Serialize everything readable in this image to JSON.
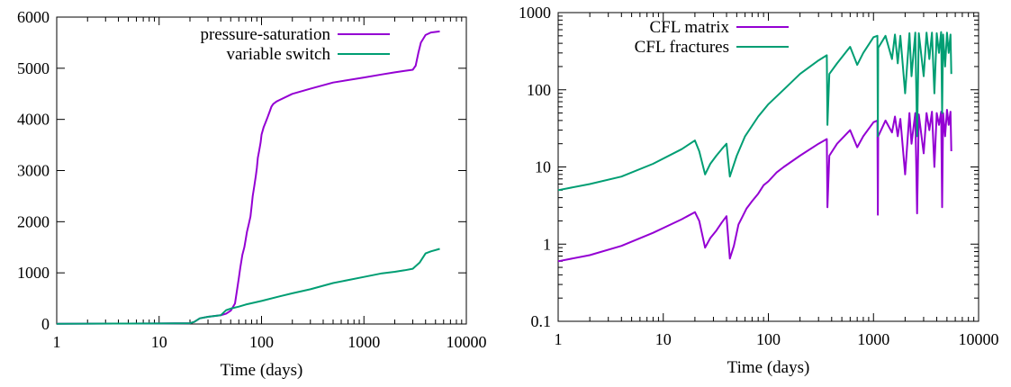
{
  "chart_data": [
    {
      "type": "line",
      "x_scale": "log",
      "y_scale": "linear",
      "xlim": [
        1,
        10000
      ],
      "ylim": [
        0,
        6000
      ],
      "xlabel": "Time (days)",
      "ylabel": "",
      "title": "",
      "grid": false,
      "legend_position": "top-right",
      "x_ticks": [
        1,
        10,
        100,
        1000,
        10000
      ],
      "x_tick_labels": [
        "1",
        "10",
        "100",
        "1000",
        "10000"
      ],
      "y_ticks": [
        0,
        1000,
        2000,
        3000,
        4000,
        5000,
        6000
      ],
      "y_tick_labels": [
        "0",
        "1000",
        "2000",
        "3000",
        "4000",
        "5000",
        "6000"
      ],
      "series": [
        {
          "name": "pressure-saturation",
          "color": "#9400d3",
          "x": [
            1,
            5,
            10,
            20,
            22,
            25,
            30,
            40,
            45,
            50,
            55,
            58,
            60,
            62,
            65,
            68,
            70,
            72,
            75,
            78,
            80,
            82,
            85,
            88,
            90,
            92,
            95,
            98,
            100,
            105,
            110,
            115,
            120,
            125,
            130,
            140,
            150,
            200,
            300,
            500,
            1000,
            1500,
            2000,
            2500,
            3000,
            3200,
            3400,
            3600,
            4000,
            4500,
            5500
          ],
          "y": [
            5,
            8,
            10,
            15,
            40,
            110,
            140,
            170,
            200,
            260,
            400,
            700,
            900,
            1100,
            1350,
            1500,
            1650,
            1800,
            1950,
            2100,
            2300,
            2500,
            2700,
            2900,
            3050,
            3250,
            3400,
            3550,
            3700,
            3850,
            3950,
            4050,
            4150,
            4250,
            4300,
            4350,
            4380,
            4500,
            4600,
            4720,
            4820,
            4880,
            4920,
            4950,
            4970,
            5050,
            5300,
            5500,
            5650,
            5700,
            5720
          ]
        },
        {
          "name": "variable switch",
          "color": "#009e73",
          "x": [
            1,
            5,
            10,
            20,
            22,
            25,
            30,
            40,
            45,
            50,
            60,
            70,
            100,
            150,
            200,
            300,
            500,
            1000,
            1500,
            2000,
            2500,
            3000,
            3500,
            4000,
            4500,
            5500
          ],
          "y": [
            5,
            8,
            10,
            15,
            40,
            110,
            140,
            170,
            270,
            300,
            340,
            380,
            450,
            540,
            600,
            680,
            800,
            920,
            990,
            1020,
            1050,
            1080,
            1200,
            1380,
            1420,
            1470
          ]
        }
      ]
    },
    {
      "type": "line",
      "x_scale": "log",
      "y_scale": "log",
      "xlim": [
        1,
        10000
      ],
      "ylim": [
        0.1,
        1000
      ],
      "xlabel": "Time (days)",
      "ylabel": "",
      "title": "",
      "grid": false,
      "legend_position": "top-left",
      "x_ticks": [
        1,
        10,
        100,
        1000,
        10000
      ],
      "x_tick_labels": [
        "1",
        "10",
        "100",
        "1000",
        "10000"
      ],
      "y_ticks": [
        0.1,
        1,
        10,
        100,
        1000
      ],
      "y_tick_labels": [
        "0.1",
        "1",
        "10",
        "100",
        "1000"
      ],
      "series": [
        {
          "name": "CFL matrix",
          "color": "#9400d3",
          "x": [
            1,
            2,
            4,
            8,
            15,
            20,
            22,
            25,
            28,
            32,
            36,
            40,
            43,
            47,
            52,
            56,
            62,
            70,
            80,
            90,
            100,
            120,
            140,
            200,
            300,
            360,
            365,
            380,
            450,
            600,
            700,
            800,
            1000,
            1090,
            1100,
            1110,
            1300,
            1500,
            1600,
            1700,
            1800,
            2000,
            2200,
            2300,
            2500,
            2600,
            2700,
            3000,
            3200,
            3400,
            3600,
            3800,
            4000,
            4200,
            4400,
            4500,
            4600,
            4800,
            5000,
            5200,
            5400,
            5500
          ],
          "y": [
            0.6,
            0.72,
            0.95,
            1.4,
            2.1,
            2.6,
            2.0,
            0.9,
            1.2,
            1.5,
            1.9,
            2.3,
            0.65,
            0.95,
            1.8,
            2.2,
            2.9,
            3.6,
            4.5,
            5.8,
            6.5,
            8.5,
            10,
            14,
            20,
            23,
            3.0,
            14,
            20,
            30,
            18,
            25,
            38,
            40,
            2.4,
            25,
            40,
            28,
            45,
            25,
            42,
            8,
            50,
            20,
            50,
            2.5,
            48,
            15,
            50,
            30,
            52,
            10,
            50,
            35,
            52,
            3.0,
            50,
            25,
            55,
            35,
            52,
            16
          ]
        },
        {
          "name": "CFL fractures",
          "color": "#009e73",
          "x": [
            1,
            2,
            4,
            8,
            15,
            20,
            22,
            25,
            28,
            32,
            36,
            40,
            43,
            50,
            60,
            80,
            100,
            150,
            200,
            300,
            360,
            365,
            380,
            450,
            600,
            700,
            800,
            1000,
            1090,
            1100,
            1110,
            1300,
            1500,
            1600,
            1700,
            1800,
            2000,
            2200,
            2300,
            2500,
            2600,
            2700,
            3000,
            3200,
            3400,
            3600,
            3800,
            4000,
            4200,
            4400,
            4500,
            4600,
            4800,
            5000,
            5200,
            5400,
            5500
          ],
          "y": [
            5,
            6,
            7.5,
            11,
            17,
            22,
            16,
            8,
            11,
            14,
            17,
            20,
            7.5,
            14,
            25,
            45,
            65,
            110,
            160,
            240,
            280,
            35,
            160,
            220,
            360,
            210,
            300,
            480,
            500,
            25,
            350,
            500,
            250,
            520,
            220,
            500,
            90,
            540,
            150,
            550,
            25,
            540,
            150,
            550,
            250,
            550,
            90,
            540,
            300,
            560,
            50,
            520,
            200,
            550,
            300,
            520,
            160
          ]
        }
      ]
    }
  ]
}
